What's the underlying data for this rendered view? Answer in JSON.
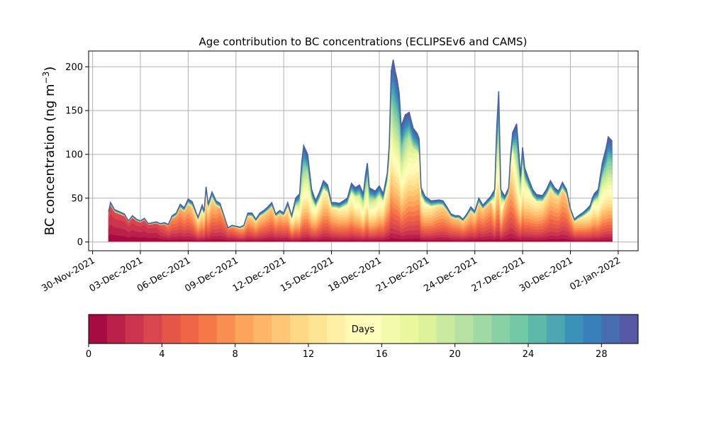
{
  "chart_data": [
    {
      "type": "area",
      "stacked": true,
      "title": "Age contribution to BC concentrations (ECLIPSEv6 and CAMS)",
      "ylabel_main": "BC concentration (ng m",
      "ylabel_sup": "−3",
      "ylabel_close": ")",
      "xlabel": "",
      "x_ticks": [
        "30-Nov-2021",
        "03-Dec-2021",
        "06-Dec-2021",
        "09-Dec-2021",
        "12-Dec-2021",
        "15-Dec-2021",
        "18-Dec-2021",
        "21-Dec-2021",
        "24-Dec-2021",
        "27-Dec-2021",
        "30-Dec-2021",
        "02-Jan-2022"
      ],
      "x_tick_dates": [
        "2021-11-30",
        "2021-12-03",
        "2021-12-06",
        "2021-12-09",
        "2021-12-12",
        "2021-12-15",
        "2021-12-18",
        "2021-12-21",
        "2021-12-24",
        "2021-12-27",
        "2021-12-30",
        "2022-01-02"
      ],
      "xlim": [
        "2021-11-29T18:00",
        "2022-01-03T06:00"
      ],
      "y_ticks": [
        0,
        50,
        100,
        150,
        200
      ],
      "ylim": [
        -10,
        218
      ],
      "grid": true,
      "colormap": "Spectral",
      "age_bins_days": 30,
      "total": [
        [
          "2021-12-01T00:00",
          34
        ],
        [
          "2021-12-01T03:00",
          45
        ],
        [
          "2021-12-01T09:00",
          37
        ],
        [
          "2021-12-01T15:00",
          35
        ],
        [
          "2021-12-02T00:00",
          32
        ],
        [
          "2021-12-02T06:00",
          24
        ],
        [
          "2021-12-02T12:00",
          30
        ],
        [
          "2021-12-02T18:00",
          26
        ],
        [
          "2021-12-03T00:00",
          24
        ],
        [
          "2021-12-03T06:00",
          27
        ],
        [
          "2021-12-03T12:00",
          21
        ],
        [
          "2021-12-03T18:00",
          22
        ],
        [
          "2021-12-04T00:00",
          23
        ],
        [
          "2021-12-04T06:00",
          21
        ],
        [
          "2021-12-04T12:00",
          22
        ],
        [
          "2021-12-04T18:00",
          20
        ],
        [
          "2021-12-05T00:00",
          30
        ],
        [
          "2021-12-05T06:00",
          33
        ],
        [
          "2021-12-05T12:00",
          43
        ],
        [
          "2021-12-05T18:00",
          39
        ],
        [
          "2021-12-06T00:00",
          49
        ],
        [
          "2021-12-06T06:00",
          46
        ],
        [
          "2021-12-06T12:00",
          34
        ],
        [
          "2021-12-06T15:00",
          28
        ],
        [
          "2021-12-06T21:00",
          42
        ],
        [
          "2021-12-07T00:00",
          35
        ],
        [
          "2021-12-07T03:00",
          63
        ],
        [
          "2021-12-07T06:00",
          43
        ],
        [
          "2021-12-07T12:00",
          57
        ],
        [
          "2021-12-07T18:00",
          47
        ],
        [
          "2021-12-08T00:00",
          44
        ],
        [
          "2021-12-08T06:00",
          30
        ],
        [
          "2021-12-08T12:00",
          16
        ],
        [
          "2021-12-08T18:00",
          19
        ],
        [
          "2021-12-09T00:00",
          18
        ],
        [
          "2021-12-09T06:00",
          17
        ],
        [
          "2021-12-09T12:00",
          19
        ],
        [
          "2021-12-09T18:00",
          33
        ],
        [
          "2021-12-10T00:00",
          33
        ],
        [
          "2021-12-10T06:00",
          26
        ],
        [
          "2021-12-10T12:00",
          33
        ],
        [
          "2021-12-10T18:00",
          36
        ],
        [
          "2021-12-11T00:00",
          40
        ],
        [
          "2021-12-11T06:00",
          45
        ],
        [
          "2021-12-11T12:00",
          32
        ],
        [
          "2021-12-11T18:00",
          36
        ],
        [
          "2021-12-12T00:00",
          33
        ],
        [
          "2021-12-12T06:00",
          45
        ],
        [
          "2021-12-12T12:00",
          30
        ],
        [
          "2021-12-12T18:00",
          50
        ],
        [
          "2021-12-13T00:00",
          55
        ],
        [
          "2021-12-13T03:00",
          90
        ],
        [
          "2021-12-13T06:00",
          110
        ],
        [
          "2021-12-13T12:00",
          100
        ],
        [
          "2021-12-13T18:00",
          60
        ],
        [
          "2021-12-14T00:00",
          47
        ],
        [
          "2021-12-14T06:00",
          57
        ],
        [
          "2021-12-14T12:00",
          70
        ],
        [
          "2021-12-14T18:00",
          65
        ],
        [
          "2021-12-15T00:00",
          45
        ],
        [
          "2021-12-15T06:00",
          45
        ],
        [
          "2021-12-15T12:00",
          44
        ],
        [
          "2021-12-15T18:00",
          47
        ],
        [
          "2021-12-16T00:00",
          50
        ],
        [
          "2021-12-16T06:00",
          67
        ],
        [
          "2021-12-16T12:00",
          62
        ],
        [
          "2021-12-16T18:00",
          65
        ],
        [
          "2021-12-17T00:00",
          55
        ],
        [
          "2021-12-17T03:00",
          75
        ],
        [
          "2021-12-17T06:00",
          90
        ],
        [
          "2021-12-17T09:00",
          62
        ],
        [
          "2021-12-17T18:00",
          58
        ],
        [
          "2021-12-18T00:00",
          64
        ],
        [
          "2021-12-18T06:00",
          55
        ],
        [
          "2021-12-18T12:00",
          78
        ],
        [
          "2021-12-18T15:00",
          110
        ],
        [
          "2021-12-18T18:00",
          195
        ],
        [
          "2021-12-18T21:00",
          208
        ],
        [
          "2021-12-19T00:00",
          195
        ],
        [
          "2021-12-19T03:00",
          185
        ],
        [
          "2021-12-19T06:00",
          170
        ],
        [
          "2021-12-19T09:00",
          132
        ],
        [
          "2021-12-19T15:00",
          145
        ],
        [
          "2021-12-19T21:00",
          148
        ],
        [
          "2021-12-20T03:00",
          130
        ],
        [
          "2021-12-20T09:00",
          124
        ],
        [
          "2021-12-20T12:00",
          118
        ],
        [
          "2021-12-20T15:00",
          62
        ],
        [
          "2021-12-20T21:00",
          52
        ],
        [
          "2021-12-21T06:00",
          47
        ],
        [
          "2021-12-21T18:00",
          48
        ],
        [
          "2021-12-22T00:00",
          47
        ],
        [
          "2021-12-22T06:00",
          40
        ],
        [
          "2021-12-22T12:00",
          32
        ],
        [
          "2021-12-22T18:00",
          30
        ],
        [
          "2021-12-23T00:00",
          30
        ],
        [
          "2021-12-23T06:00",
          26
        ],
        [
          "2021-12-23T12:00",
          32
        ],
        [
          "2021-12-23T18:00",
          40
        ],
        [
          "2021-12-24T00:00",
          35
        ],
        [
          "2021-12-24T06:00",
          50
        ],
        [
          "2021-12-24T12:00",
          42
        ],
        [
          "2021-12-24T18:00",
          47
        ],
        [
          "2021-12-25T00:00",
          52
        ],
        [
          "2021-12-25T06:00",
          60
        ],
        [
          "2021-12-25T09:00",
          130
        ],
        [
          "2021-12-25T12:00",
          172
        ],
        [
          "2021-12-25T15:00",
          60
        ],
        [
          "2021-12-25T21:00",
          52
        ],
        [
          "2021-12-26T03:00",
          62
        ],
        [
          "2021-12-26T06:00",
          100
        ],
        [
          "2021-12-26T09:00",
          125
        ],
        [
          "2021-12-26T15:00",
          135
        ],
        [
          "2021-12-26T21:00",
          75
        ],
        [
          "2021-12-27T00:00",
          108
        ],
        [
          "2021-12-27T03:00",
          85
        ],
        [
          "2021-12-27T09:00",
          72
        ],
        [
          "2021-12-27T15:00",
          60
        ],
        [
          "2021-12-27T21:00",
          54
        ],
        [
          "2021-12-28T06:00",
          53
        ],
        [
          "2021-12-28T12:00",
          60
        ],
        [
          "2021-12-28T18:00",
          70
        ],
        [
          "2021-12-29T00:00",
          62
        ],
        [
          "2021-12-29T06:00",
          58
        ],
        [
          "2021-12-29T12:00",
          68
        ],
        [
          "2021-12-29T18:00",
          60
        ],
        [
          "2021-12-30T00:00",
          38
        ],
        [
          "2021-12-30T06:00",
          26
        ],
        [
          "2021-12-30T12:00",
          30
        ],
        [
          "2021-12-30T18:00",
          33
        ],
        [
          "2021-12-31T00:00",
          37
        ],
        [
          "2021-12-31T06:00",
          42
        ],
        [
          "2021-12-31T09:00",
          50
        ],
        [
          "2021-12-31T12:00",
          55
        ],
        [
          "2021-12-31T18:00",
          60
        ],
        [
          "2022-01-01T00:00",
          90
        ],
        [
          "2022-01-01T06:00",
          108
        ],
        [
          "2022-01-01T09:00",
          120
        ],
        [
          "2022-01-01T15:00",
          115
        ]
      ],
      "young_fraction": [
        [
          "2021-12-01T00:00",
          0.05
        ],
        [
          "2021-12-04T00:00",
          0.05
        ],
        [
          "2021-12-05T00:00",
          0.2
        ],
        [
          "2021-12-06T00:00",
          0.3
        ],
        [
          "2021-12-07T00:00",
          0.45
        ],
        [
          "2021-12-08T12:00",
          0.15
        ],
        [
          "2021-12-10T00:00",
          0.35
        ],
        [
          "2021-12-12T00:00",
          0.3
        ],
        [
          "2021-12-13T06:00",
          0.8
        ],
        [
          "2021-12-14T00:00",
          0.55
        ],
        [
          "2021-12-15T00:00",
          0.4
        ],
        [
          "2021-12-16T00:00",
          0.5
        ],
        [
          "2021-12-17T06:00",
          0.75
        ],
        [
          "2021-12-18T12:00",
          0.5
        ],
        [
          "2021-12-18T21:00",
          0.85
        ],
        [
          "2021-12-19T12:00",
          0.78
        ],
        [
          "2021-12-20T12:00",
          0.55
        ],
        [
          "2021-12-21T12:00",
          0.4
        ],
        [
          "2021-12-22T12:00",
          0.3
        ],
        [
          "2021-12-24T00:00",
          0.35
        ],
        [
          "2021-12-25T00:00",
          0.3
        ],
        [
          "2021-12-25T12:00",
          0.85
        ],
        [
          "2021-12-26T00:00",
          0.15
        ],
        [
          "2021-12-26T15:00",
          0.8
        ],
        [
          "2021-12-27T12:00",
          0.5
        ],
        [
          "2021-12-28T12:00",
          0.4
        ],
        [
          "2021-12-30T00:00",
          0.3
        ],
        [
          "2021-12-31T12:00",
          0.55
        ],
        [
          "2022-01-01T09:00",
          0.82
        ],
        [
          "2022-01-01T15:00",
          0.8
        ]
      ]
    },
    {
      "type": "colorbar",
      "label": "Days",
      "ticks": [
        0,
        4,
        8,
        12,
        16,
        20,
        24,
        28
      ],
      "range": [
        0,
        30
      ],
      "n_bins": 30,
      "colormap": "Spectral"
    }
  ],
  "colors": {
    "spectral": [
      "#9e0142",
      "#d53e4f",
      "#f46d43",
      "#fdae61",
      "#fee08b",
      "#ffffbf",
      "#e6f598",
      "#abdda4",
      "#66c2a5",
      "#3288bd",
      "#5e4fa2"
    ],
    "grid": "#b0b0b0",
    "outline": "#4a62a0"
  }
}
